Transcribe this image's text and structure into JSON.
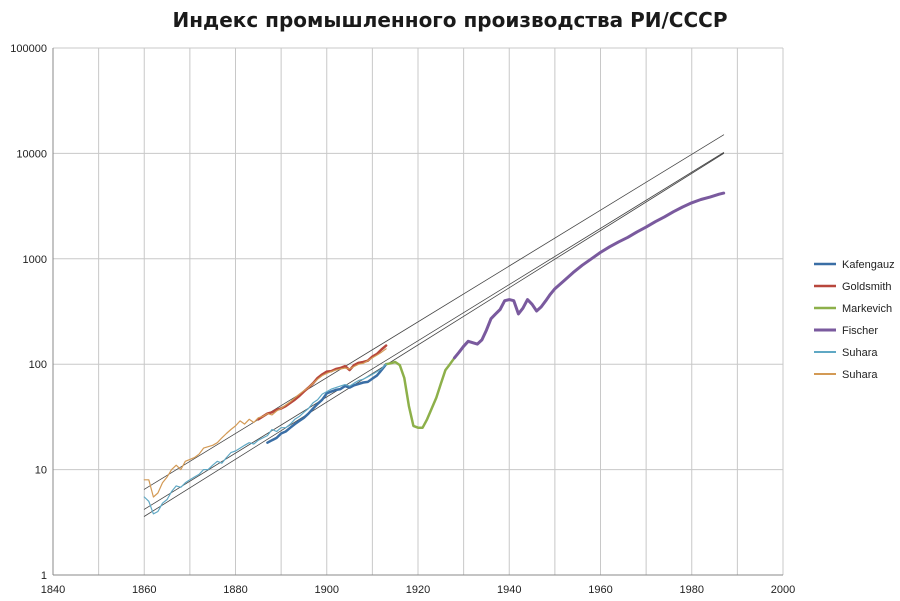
{
  "chart_data": {
    "type": "line",
    "title": "Индекс промышленного производства РИ/СССР",
    "xlabel": "",
    "ylabel": "",
    "x_scale": "linear",
    "y_scale": "log",
    "xlim": [
      1840,
      2000
    ],
    "ylim": [
      1,
      100000
    ],
    "x_ticks": [
      "1840",
      "1860",
      "1880",
      "1900",
      "1920",
      "1940",
      "1960",
      "1980",
      "2000"
    ],
    "y_ticks": [
      "1",
      "10",
      "100",
      "1000",
      "10000",
      "100000"
    ],
    "grid": true,
    "legend_position": "right",
    "series": [
      {
        "name": "Kafengauz",
        "color": "#3a6ea5",
        "stroke_width": 2.5,
        "x": [
          1887,
          1888,
          1889,
          1890,
          1891,
          1892,
          1893,
          1894,
          1895,
          1896,
          1897,
          1898,
          1899,
          1900,
          1901,
          1902,
          1903,
          1904,
          1905,
          1906,
          1907,
          1908,
          1909,
          1910,
          1911,
          1912,
          1913
        ],
        "y": [
          18,
          19,
          20,
          22,
          23,
          25,
          27,
          29,
          31,
          34,
          38,
          42,
          46,
          53,
          55,
          57,
          58,
          62,
          60,
          63,
          65,
          67,
          68,
          73,
          78,
          88,
          100
        ]
      },
      {
        "name": "Goldsmith",
        "color": "#b8473c",
        "stroke_width": 2.5,
        "x": [
          1885,
          1886,
          1887,
          1888,
          1889,
          1890,
          1891,
          1892,
          1893,
          1894,
          1895,
          1896,
          1897,
          1898,
          1899,
          1900,
          1901,
          1902,
          1903,
          1904,
          1905,
          1906,
          1907,
          1908,
          1909,
          1910,
          1911,
          1912,
          1913
        ],
        "y": [
          30,
          32,
          34,
          35,
          37,
          38,
          40,
          43,
          46,
          50,
          55,
          60,
          66,
          74,
          80,
          85,
          86,
          90,
          92,
          96,
          88,
          98,
          103,
          105,
          108,
          118,
          125,
          138,
          150
        ]
      },
      {
        "name": "Markevich",
        "color": "#8db04a",
        "stroke_width": 2.5,
        "x": [
          1913,
          1914,
          1915,
          1916,
          1917,
          1918,
          1919,
          1920,
          1921,
          1922,
          1923,
          1924,
          1925,
          1926,
          1927,
          1928
        ],
        "y": [
          100,
          102,
          105,
          98,
          74,
          40,
          26,
          25,
          25,
          30,
          38,
          48,
          65,
          88,
          100,
          115
        ]
      },
      {
        "name": "Fischer",
        "color": "#7a5a9e",
        "stroke_width": 3,
        "x": [
          1928,
          1929,
          1930,
          1931,
          1932,
          1933,
          1934,
          1935,
          1936,
          1937,
          1938,
          1939,
          1940,
          1941,
          1942,
          1943,
          1944,
          1945,
          1946,
          1947,
          1948,
          1949,
          1950,
          1952,
          1954,
          1956,
          1958,
          1960,
          1962,
          1964,
          1966,
          1968,
          1970,
          1972,
          1974,
          1976,
          1978,
          1980,
          1982,
          1984,
          1986,
          1987
        ],
        "y": [
          115,
          130,
          148,
          165,
          160,
          155,
          170,
          210,
          270,
          300,
          330,
          400,
          410,
          400,
          300,
          340,
          410,
          370,
          320,
          350,
          400,
          460,
          520,
          620,
          740,
          870,
          1000,
          1150,
          1300,
          1450,
          1600,
          1800,
          2000,
          2250,
          2500,
          2800,
          3100,
          3400,
          3650,
          3850,
          4100,
          4200
        ]
      },
      {
        "name": "Suhara",
        "color": "#5fa8c4",
        "stroke_width": 1.2,
        "x": [
          1860,
          1861,
          1862,
          1863,
          1864,
          1865,
          1866,
          1867,
          1868,
          1869,
          1870,
          1871,
          1872,
          1873,
          1874,
          1875,
          1876,
          1877,
          1878,
          1879,
          1880,
          1881,
          1882,
          1883,
          1884,
          1885,
          1886,
          1887,
          1888,
          1889,
          1890,
          1891,
          1892,
          1893,
          1894,
          1895,
          1896,
          1897,
          1898,
          1899,
          1900,
          1901,
          1902,
          1903,
          1904,
          1905,
          1906,
          1907,
          1908,
          1909,
          1910,
          1911,
          1912,
          1913
        ],
        "y": [
          5.5,
          5.0,
          3.8,
          4.0,
          4.8,
          5.2,
          6.2,
          7.0,
          6.8,
          7.5,
          8.0,
          8.5,
          9.0,
          10.0,
          10.0,
          11.0,
          12.0,
          11.5,
          13.0,
          14.5,
          15.0,
          16.0,
          17.0,
          18.0,
          17.5,
          19.0,
          20.0,
          21.0,
          24.0,
          23.0,
          25.0,
          25.0,
          27.0,
          30.0,
          32.0,
          35.0,
          38.0,
          43.0,
          46.0,
          52.0,
          55.0,
          58.0,
          60.0,
          62.0,
          64.0,
          62.0,
          66.0,
          70.0,
          72.0,
          76.0,
          80.0,
          85.0,
          90.0,
          100.0
        ]
      },
      {
        "name": "Suhara",
        "color": "#d39a55",
        "stroke_width": 1.2,
        "x": [
          1860,
          1861,
          1862,
          1863,
          1864,
          1865,
          1866,
          1867,
          1868,
          1869,
          1870,
          1871,
          1872,
          1873,
          1874,
          1875,
          1876,
          1877,
          1878,
          1879,
          1880,
          1881,
          1882,
          1883,
          1884,
          1885,
          1886,
          1887,
          1888,
          1889,
          1890,
          1891,
          1892,
          1893,
          1894,
          1895,
          1896,
          1897,
          1898,
          1899,
          1900,
          1901,
          1902,
          1903,
          1904,
          1905,
          1906,
          1907,
          1908,
          1909,
          1910,
          1911,
          1912,
          1913
        ],
        "y": [
          8.0,
          8.0,
          5.5,
          6.0,
          7.5,
          8.5,
          10.0,
          11.0,
          10.0,
          12.0,
          12.5,
          13.0,
          14.0,
          16.0,
          16.5,
          17.0,
          18.0,
          20.0,
          22.0,
          24.0,
          26.0,
          29.0,
          27.0,
          30.0,
          28.0,
          31.0,
          32.0,
          34.0,
          33.0,
          36.0,
          38.0,
          41.0,
          44.0,
          48.0,
          52.0,
          56.0,
          60.0,
          66.0,
          72.0,
          78.0,
          82.0,
          85.0,
          88.0,
          90.0,
          92.0,
          90.0,
          95.0,
          100.0,
          102.0,
          108.0,
          115.0,
          122.0,
          130.0,
          140.0
        ]
      },
      {
        "name": "",
        "role": "trend",
        "color": "#444444",
        "stroke_width": 0.8,
        "x": [
          1860,
          1987
        ],
        "y": [
          6.5,
          15000
        ]
      },
      {
        "name": "",
        "role": "trend",
        "color": "#444444",
        "stroke_width": 0.8,
        "x": [
          1860,
          1987
        ],
        "y": [
          4.2,
          10200
        ]
      },
      {
        "name": "",
        "role": "trend",
        "color": "#444444",
        "stroke_width": 0.8,
        "x": [
          1860,
          1987
        ],
        "y": [
          3.6,
          10000
        ]
      }
    ]
  }
}
